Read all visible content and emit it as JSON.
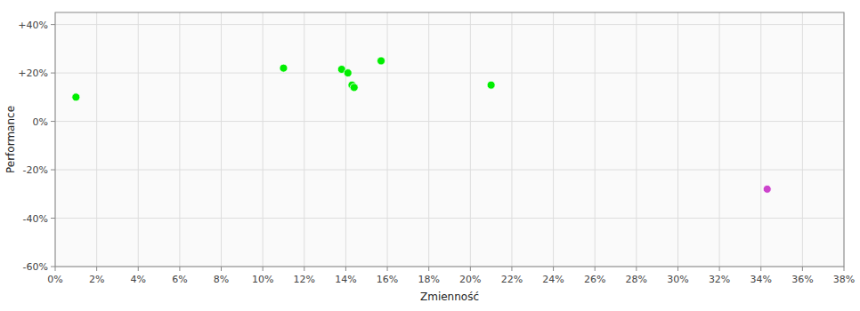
{
  "chart_data": {
    "type": "scatter",
    "x_label": "Zmienność",
    "y_label": "Performance",
    "series": [
      {
        "color": "#00ee00",
        "x": [
          1.0,
          11.0,
          13.8,
          14.1,
          14.3,
          14.4,
          15.7,
          21.0
        ],
        "values": [
          10.0,
          22.0,
          21.5,
          20.0,
          15.0,
          14.0,
          25.0,
          15.0
        ]
      },
      {
        "color": "#cc44cc",
        "x": [
          34.3
        ],
        "values": [
          -28.0
        ]
      }
    ],
    "xlim": [
      0,
      38
    ],
    "ylim": [
      -60,
      45
    ],
    "xticks": [
      {
        "value": 0,
        "label": "0%"
      },
      {
        "value": 2,
        "label": "2%"
      },
      {
        "value": 4,
        "label": "4%"
      },
      {
        "value": 6,
        "label": "6%"
      },
      {
        "value": 8,
        "label": "8%"
      },
      {
        "value": 10,
        "label": "10%"
      },
      {
        "value": 12,
        "label": "12%"
      },
      {
        "value": 14,
        "label": "14%"
      },
      {
        "value": 16,
        "label": "16%"
      },
      {
        "value": 18,
        "label": "18%"
      },
      {
        "value": 20,
        "label": "20%"
      },
      {
        "value": 22,
        "label": "22%"
      },
      {
        "value": 24,
        "label": "24%"
      },
      {
        "value": 26,
        "label": "26%"
      },
      {
        "value": 28,
        "label": "28%"
      },
      {
        "value": 30,
        "label": "30%"
      },
      {
        "value": 32,
        "label": "32%"
      },
      {
        "value": 34,
        "label": "34%"
      },
      {
        "value": 36,
        "label": "36%"
      },
      {
        "value": 38,
        "label": "38%"
      }
    ],
    "yticks": [
      {
        "value": -60,
        "label": "-60%"
      },
      {
        "value": -40,
        "label": "-40%"
      },
      {
        "value": -20,
        "label": "-20%"
      },
      {
        "value": 0,
        "label": "0%"
      },
      {
        "value": 20,
        "label": "+20%"
      },
      {
        "value": 40,
        "label": "+40%"
      }
    ],
    "grid": true
  }
}
